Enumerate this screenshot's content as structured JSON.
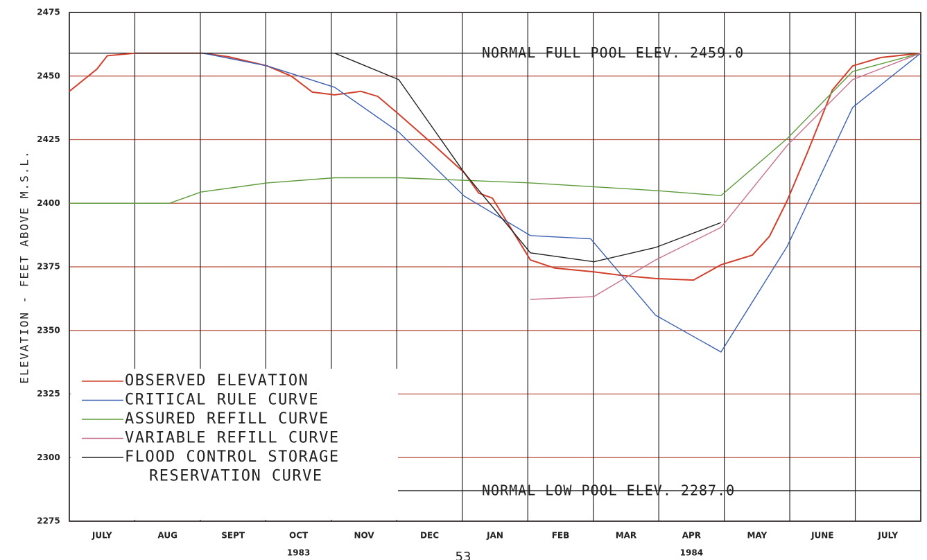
{
  "chart_data": {
    "type": "line",
    "y_axis_label": "ELEVATION - FEET ABOVE M.S.L.",
    "categories": [
      "JULY",
      "AUG",
      "SEPT",
      "OCT",
      "NOV",
      "DEC",
      "JAN",
      "FEB",
      "MAR",
      "APR",
      "MAY",
      "JUNE",
      "JULY"
    ],
    "x_group_labels": [
      "1983",
      "1984"
    ],
    "page_number": "53",
    "xlim": [
      0,
      13
    ],
    "ylim": [
      2275,
      2475
    ],
    "yticks": [
      2275,
      2300,
      2325,
      2350,
      2375,
      2400,
      2425,
      2450,
      2475
    ],
    "grid": true,
    "reference_lines": [
      {
        "label": "NORMAL FULL POOL ELEV. 2459.0",
        "value": 2459
      },
      {
        "label": "NORMAL LOW POOL ELEV. 2287.0",
        "value": 2287
      }
    ],
    "series": [
      {
        "name": "OBSERVED ELEVATION",
        "color": "#d0402c",
        "x": [
          0,
          0.42,
          0.58,
          1.0,
          2.04,
          2.43,
          3.02,
          3.39,
          3.71,
          4.05,
          4.45,
          4.71,
          5.03,
          5.56,
          6.03,
          6.25,
          6.46,
          7.04,
          7.41,
          8.01,
          8.47,
          8.95,
          9.53,
          9.95,
          10.43,
          10.69,
          10.96,
          11.27,
          11.65,
          11.96,
          12.39,
          13
        ],
        "values": [
          2444,
          2452.7,
          2458,
          2459,
          2459,
          2457.6,
          2454,
          2450,
          2443.7,
          2442.6,
          2444,
          2442,
          2435,
          2423,
          2412,
          2404,
          2402,
          2377.7,
          2374.5,
          2373,
          2371.5,
          2370.4,
          2369.8,
          2375.8,
          2379.6,
          2387,
          2401,
          2420,
          2444.5,
          2454,
          2457.3,
          2459
        ]
      },
      {
        "name": "CRITICAL RULE CURVE",
        "color": "#3b5fb2",
        "x": [
          1.0,
          2.04,
          3.02,
          4.05,
          5.03,
          6.03,
          7.04,
          7.96,
          8.95,
          9.95,
          10.96,
          11.96,
          13
        ],
        "values": [
          2459,
          2459,
          2454,
          2445.6,
          2428,
          2402.8,
          2387.3,
          2386,
          2356,
          2341.5,
          2383,
          2437.7,
          2459
        ]
      },
      {
        "name": "ASSURED REFILL CURVE",
        "color": "#5c9a3a",
        "x": [
          0,
          1.53,
          2.01,
          3.02,
          4.05,
          5.03,
          7.04,
          8.95,
          9.95,
          10.96,
          11.96,
          13
        ],
        "values": [
          2400,
          2400,
          2404.4,
          2408,
          2410,
          2410,
          2408,
          2405,
          2403,
          2425.4,
          2451.8,
          2459
        ]
      },
      {
        "name": "VARIABLE REFILL CURVE",
        "color": "#c8708e",
        "x": [
          7.04,
          8.01,
          8.95,
          9.95,
          10.96,
          11.96,
          13
        ],
        "values": [
          2362.2,
          2363.3,
          2377.7,
          2390.5,
          2422.7,
          2448.6,
          2459
        ]
      },
      {
        "name": "FLOOD CONTROL STORAGE\nRESERVATION CURVE",
        "color": "#222222",
        "x": [
          1.0,
          4.05,
          5.03,
          6.03,
          7.04,
          8.01,
          8.95,
          9.95
        ],
        "values": [
          2459,
          2459,
          2448.6,
          2412,
          2380.5,
          2377,
          2382.6,
          2392.4
        ]
      }
    ]
  }
}
